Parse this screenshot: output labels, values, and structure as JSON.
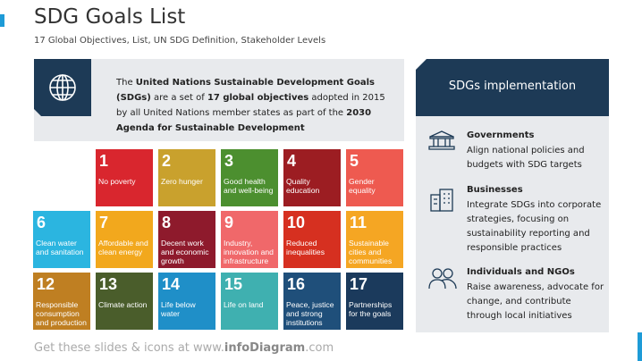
{
  "header": {
    "title": "SDG Goals List",
    "subtitle": "17 Global Objectives, List, UN SDG Definition, Stakeholder Levels"
  },
  "intro": [
    "The ",
    "United Nations Sustainable Development Goals (SDGs)",
    " are a set of ",
    "17 global objectives",
    " adopted in 2015 by all United Nations member states as part of the ",
    "2030 Agenda for Sustainable Development"
  ],
  "goals": [
    {
      "number": "1",
      "label": "No poverty",
      "color": "#d9262e"
    },
    {
      "number": "2",
      "label": "Zero hunger",
      "color": "#c9a12d"
    },
    {
      "number": "3",
      "label": "Good health and well-being",
      "color": "#4c8f2f"
    },
    {
      "number": "4",
      "label": "Quality education",
      "color": "#9c1d22"
    },
    {
      "number": "5",
      "label": "Gender equality",
      "color": "#ee5a50"
    },
    {
      "number": "6",
      "label": "Clean water and sanitation",
      "color": "#2bb5e0"
    },
    {
      "number": "7",
      "label": "Affordable and clean energy",
      "color": "#f2a81d"
    },
    {
      "number": "8",
      "label": "Decent work and economic growth",
      "color": "#8e1a2c"
    },
    {
      "number": "9",
      "label": "Industry, innovation and infrastructure",
      "color": "#f0686a"
    },
    {
      "number": "10",
      "label": "Reduced inequalities",
      "color": "#d63020"
    },
    {
      "number": "11",
      "label": "Sustainable cities and communities",
      "color": "#f5a623"
    },
    {
      "number": "12",
      "label": "Responsible consumption and production",
      "color": "#bf7f22"
    },
    {
      "number": "13",
      "label": "Climate action",
      "color": "#4a5d2b"
    },
    {
      "number": "14",
      "label": "Life below water",
      "color": "#1f8fc8"
    },
    {
      "number": "15",
      "label": "Life on land",
      "color": "#3fb0b0"
    },
    {
      "number": "16",
      "label": "Peace, justice and strong institutions",
      "color": "#1f4f7a"
    },
    {
      "number": "17",
      "label": "Partnerships for the goals",
      "color": "#1b3a5c"
    }
  ],
  "panel": {
    "title": "SDGs implementation",
    "items": [
      {
        "title": "Governments",
        "text": "Align national policies and budgets with SDG targets"
      },
      {
        "title": "Businesses",
        "text": "Integrate SDGs into corporate strategies, focusing on sustainability reporting and responsible practices"
      },
      {
        "title": "Individuals and NGOs",
        "text": "Raise awareness, advocate for change, and contribute through local initiatives"
      }
    ]
  },
  "footer": [
    "Get these slides & icons at www.",
    "infoDiagram",
    ".com"
  ]
}
